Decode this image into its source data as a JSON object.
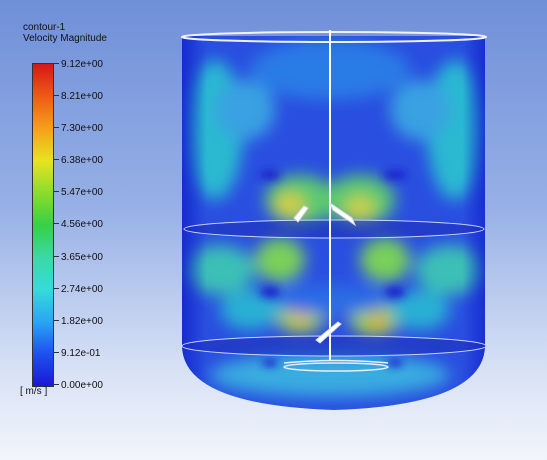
{
  "legend": {
    "title": "contour-1",
    "variable": "Velocity Magnitude",
    "unit": "[ m/s ]",
    "labels": [
      "9.12e+00",
      "8.21e+00",
      "7.30e+00",
      "6.38e+00",
      "5.47e+00",
      "4.56e+00",
      "3.65e+00",
      "2.74e+00",
      "1.82e+00",
      "9.12e-01",
      "0.00e+00"
    ],
    "colors": {
      "min": "#1a18d8",
      "max": "#d71616"
    }
  }
}
